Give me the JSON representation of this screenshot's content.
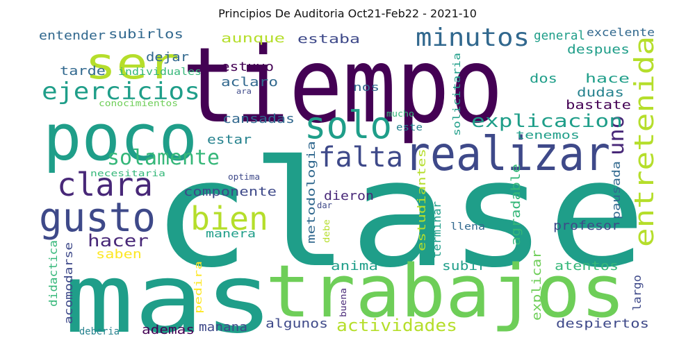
{
  "title": "Principios De Auditoria Oct21-Feb22 - 2021-10",
  "palette": {
    "dark_purple": "#440154",
    "purple": "#482878",
    "indigo": "#3e4989",
    "blue": "#31688e",
    "teal": "#26828e",
    "green_teal": "#1f9e89",
    "green": "#35b779",
    "light_green": "#6ece58",
    "lime": "#b5de2b",
    "yellow": "#fde725"
  },
  "words": [
    {
      "text": "clase",
      "color": "green_teal"
    },
    {
      "text": "tiempo",
      "color": "dark_purple"
    },
    {
      "text": "mas",
      "color": "green_teal"
    },
    {
      "text": "trabajos",
      "color": "light_green"
    },
    {
      "text": "poco",
      "color": "green_teal"
    },
    {
      "text": "realizar",
      "color": "indigo"
    },
    {
      "text": "ser",
      "color": "lime"
    },
    {
      "text": "solo",
      "color": "green_teal"
    },
    {
      "text": "gusto",
      "color": "indigo"
    },
    {
      "text": "clara",
      "color": "purple"
    },
    {
      "text": "bien",
      "color": "lime"
    },
    {
      "text": "falta",
      "color": "indigo"
    },
    {
      "text": "minutos",
      "color": "blue"
    },
    {
      "text": "ejercicios",
      "color": "green_teal"
    },
    {
      "text": "entretenida",
      "color": "lime"
    },
    {
      "text": "solamente",
      "color": "green"
    },
    {
      "text": "uno",
      "color": "purple"
    },
    {
      "text": "explicacion",
      "color": "green_teal"
    },
    {
      "text": "actividades",
      "color": "lime"
    },
    {
      "text": "hacer",
      "color": "purple"
    },
    {
      "text": "subirlos",
      "color": "blue"
    },
    {
      "text": "entender",
      "color": "blue"
    },
    {
      "text": "aunque",
      "color": "lime"
    },
    {
      "text": "estaba",
      "color": "indigo"
    },
    {
      "text": "general",
      "color": "green_teal"
    },
    {
      "text": "excelente",
      "color": "blue"
    },
    {
      "text": "despues",
      "color": "green_teal"
    },
    {
      "text": "dejar",
      "color": "blue"
    },
    {
      "text": "estuvo",
      "color": "dark_purple"
    },
    {
      "text": "tarde",
      "color": "blue"
    },
    {
      "text": "individuales",
      "color": "green"
    },
    {
      "text": "aclaro",
      "color": "blue"
    },
    {
      "text": "ara",
      "color": "indigo"
    },
    {
      "text": "nos",
      "color": "blue"
    },
    {
      "text": "hace",
      "color": "green_teal"
    },
    {
      "text": "dos",
      "color": "green_teal"
    },
    {
      "text": "dudas",
      "color": "teal"
    },
    {
      "text": "bastate",
      "color": "dark_purple"
    },
    {
      "text": "conocimientos",
      "color": "light_green"
    },
    {
      "text": "cansadas",
      "color": "blue"
    },
    {
      "text": "mucho",
      "color": "green"
    },
    {
      "text": "este",
      "color": "teal"
    },
    {
      "text": "tenemos",
      "color": "green_teal"
    },
    {
      "text": "solicitaria",
      "color": "green_teal"
    },
    {
      "text": "estar",
      "color": "teal"
    },
    {
      "text": "metodologia",
      "color": "blue"
    },
    {
      "text": "necesitaria",
      "color": "green"
    },
    {
      "text": "optima",
      "color": "indigo"
    },
    {
      "text": "componente",
      "color": "indigo"
    },
    {
      "text": "dieron",
      "color": "purple"
    },
    {
      "text": "dar",
      "color": "indigo"
    },
    {
      "text": "estudiantes",
      "color": "lime"
    },
    {
      "text": "terminar",
      "color": "green_teal"
    },
    {
      "text": "agradable",
      "color": "green"
    },
    {
      "text": "pausada",
      "color": "blue"
    },
    {
      "text": "llena",
      "color": "blue"
    },
    {
      "text": "debe",
      "color": "lime"
    },
    {
      "text": "manera",
      "color": "green_teal"
    },
    {
      "text": "profesor",
      "color": "indigo"
    },
    {
      "text": "acomodarse",
      "color": "indigo"
    },
    {
      "text": "saben",
      "color": "yellow"
    },
    {
      "text": "didactica",
      "color": "green"
    },
    {
      "text": "anima",
      "color": "green_teal"
    },
    {
      "text": "subir",
      "color": "green_teal"
    },
    {
      "text": "atentos",
      "color": "green"
    },
    {
      "text": "pedira",
      "color": "yellow"
    },
    {
      "text": "explicar",
      "color": "light_green"
    },
    {
      "text": "largo",
      "color": "indigo"
    },
    {
      "text": "buena",
      "color": "purple"
    },
    {
      "text": "deberia",
      "color": "teal"
    },
    {
      "text": "ademas",
      "color": "dark_purple"
    },
    {
      "text": "manana",
      "color": "indigo"
    },
    {
      "text": "algunos",
      "color": "indigo"
    },
    {
      "text": "despiertos",
      "color": "indigo"
    }
  ]
}
